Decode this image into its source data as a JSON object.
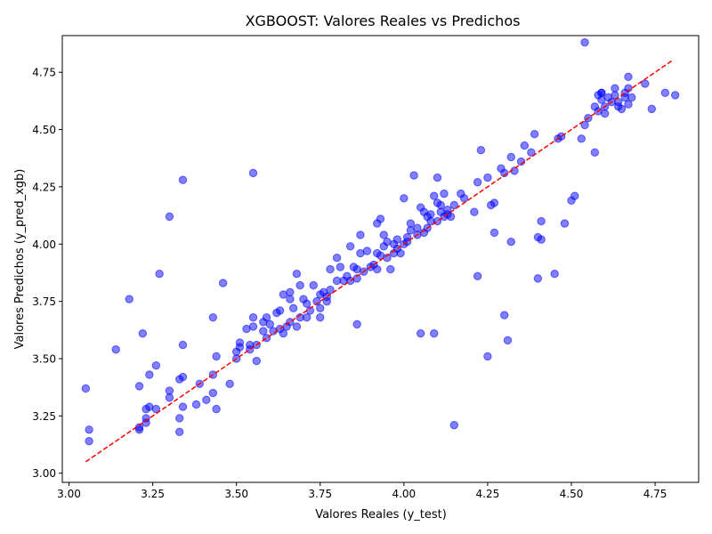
{
  "chart_data": {
    "type": "scatter",
    "title": "XGBOOST: Valores Reales vs Predichos",
    "xlabel": "Valores Reales (y_test)",
    "ylabel": "Valores Predichos (y_pred_xgb)",
    "xlim": [
      2.98,
      4.88
    ],
    "ylim": [
      2.96,
      4.91
    ],
    "xticks": [
      "3.00",
      "3.25",
      "3.50",
      "3.75",
      "4.00",
      "4.25",
      "4.50",
      "4.75"
    ],
    "yticks": [
      "3.00",
      "3.25",
      "3.50",
      "3.75",
      "4.00",
      "4.25",
      "4.50",
      "4.75"
    ],
    "xtick_values": [
      3.0,
      3.25,
      3.5,
      3.75,
      4.0,
      4.25,
      4.5,
      4.75
    ],
    "ytick_values": [
      3.0,
      3.25,
      3.5,
      3.75,
      4.0,
      4.25,
      4.5,
      4.75
    ],
    "grid": false,
    "marker_color": "#0000ff",
    "reference_line": {
      "color": "#ff0000",
      "style": "dashed",
      "x": [
        3.05,
        4.8
      ],
      "y": [
        3.05,
        4.8
      ]
    },
    "points": [
      [
        3.05,
        3.37
      ],
      [
        3.06,
        3.19
      ],
      [
        3.06,
        3.14
      ],
      [
        3.14,
        3.54
      ],
      [
        3.18,
        3.76
      ],
      [
        3.21,
        3.38
      ],
      [
        3.21,
        3.2
      ],
      [
        3.21,
        3.19
      ],
      [
        3.22,
        3.61
      ],
      [
        3.23,
        3.24
      ],
      [
        3.23,
        3.22
      ],
      [
        3.23,
        3.28
      ],
      [
        3.24,
        3.29
      ],
      [
        3.24,
        3.43
      ],
      [
        3.26,
        3.47
      ],
      [
        3.26,
        3.28
      ],
      [
        3.27,
        3.87
      ],
      [
        3.3,
        4.12
      ],
      [
        3.3,
        3.36
      ],
      [
        3.3,
        3.33
      ],
      [
        3.33,
        3.41
      ],
      [
        3.33,
        3.24
      ],
      [
        3.33,
        3.18
      ],
      [
        3.34,
        4.28
      ],
      [
        3.34,
        3.56
      ],
      [
        3.34,
        3.42
      ],
      [
        3.34,
        3.29
      ],
      [
        3.38,
        3.3
      ],
      [
        3.39,
        3.39
      ],
      [
        3.41,
        3.32
      ],
      [
        3.43,
        3.68
      ],
      [
        3.43,
        3.35
      ],
      [
        3.43,
        3.43
      ],
      [
        3.44,
        3.51
      ],
      [
        3.44,
        3.28
      ],
      [
        3.46,
        3.83
      ],
      [
        3.48,
        3.39
      ],
      [
        3.5,
        3.5
      ],
      [
        3.5,
        3.53
      ],
      [
        3.51,
        3.55
      ],
      [
        3.51,
        3.57
      ],
      [
        3.53,
        3.63
      ],
      [
        3.54,
        3.54
      ],
      [
        3.54,
        3.56
      ],
      [
        3.55,
        3.64
      ],
      [
        3.55,
        3.68
      ],
      [
        3.55,
        4.31
      ],
      [
        3.56,
        3.56
      ],
      [
        3.56,
        3.49
      ],
      [
        3.58,
        3.66
      ],
      [
        3.58,
        3.62
      ],
      [
        3.59,
        3.68
      ],
      [
        3.59,
        3.59
      ],
      [
        3.6,
        3.65
      ],
      [
        3.61,
        3.62
      ],
      [
        3.62,
        3.7
      ],
      [
        3.63,
        3.71
      ],
      [
        3.63,
        3.63
      ],
      [
        3.64,
        3.61
      ],
      [
        3.64,
        3.78
      ],
      [
        3.65,
        3.64
      ],
      [
        3.66,
        3.79
      ],
      [
        3.66,
        3.66
      ],
      [
        3.66,
        3.76
      ],
      [
        3.67,
        3.72
      ],
      [
        3.68,
        3.87
      ],
      [
        3.68,
        3.64
      ],
      [
        3.69,
        3.82
      ],
      [
        3.69,
        3.68
      ],
      [
        3.7,
        3.76
      ],
      [
        3.71,
        3.74
      ],
      [
        3.71,
        3.68
      ],
      [
        3.72,
        3.71
      ],
      [
        3.73,
        3.82
      ],
      [
        3.74,
        3.75
      ],
      [
        3.75,
        3.78
      ],
      [
        3.75,
        3.68
      ],
      [
        3.75,
        3.72
      ],
      [
        3.76,
        3.79
      ],
      [
        3.77,
        3.77
      ],
      [
        3.77,
        3.75
      ],
      [
        3.78,
        3.8
      ],
      [
        3.78,
        3.89
      ],
      [
        3.8,
        3.94
      ],
      [
        3.8,
        3.84
      ],
      [
        3.81,
        3.9
      ],
      [
        3.82,
        3.84
      ],
      [
        3.83,
        3.86
      ],
      [
        3.84,
        3.84
      ],
      [
        3.84,
        3.99
      ],
      [
        3.85,
        3.9
      ],
      [
        3.86,
        3.85
      ],
      [
        3.86,
        3.89
      ],
      [
        3.86,
        3.65
      ],
      [
        3.87,
        4.04
      ],
      [
        3.87,
        3.96
      ],
      [
        3.88,
        3.88
      ],
      [
        3.89,
        3.97
      ],
      [
        3.9,
        3.9
      ],
      [
        3.91,
        3.91
      ],
      [
        3.92,
        3.89
      ],
      [
        3.92,
        3.96
      ],
      [
        3.92,
        4.09
      ],
      [
        3.93,
        3.95
      ],
      [
        3.93,
        4.11
      ],
      [
        3.94,
        3.99
      ],
      [
        3.94,
        4.04
      ],
      [
        3.95,
        3.94
      ],
      [
        3.95,
        4.01
      ],
      [
        3.96,
        3.89
      ],
      [
        3.97,
        4.0
      ],
      [
        3.97,
        3.96
      ],
      [
        3.98,
        4.02
      ],
      [
        3.98,
        3.98
      ],
      [
        3.99,
        3.96
      ],
      [
        4.0,
        4.0
      ],
      [
        4.0,
        4.2
      ],
      [
        4.01,
        4.03
      ],
      [
        4.01,
        4.01
      ],
      [
        4.02,
        4.06
      ],
      [
        4.02,
        4.09
      ],
      [
        4.03,
        4.3
      ],
      [
        4.04,
        4.04
      ],
      [
        4.04,
        4.07
      ],
      [
        4.05,
        4.16
      ],
      [
        4.05,
        3.61
      ],
      [
        4.06,
        4.05
      ],
      [
        4.06,
        4.14
      ],
      [
        4.07,
        4.07
      ],
      [
        4.07,
        4.12
      ],
      [
        4.08,
        4.1
      ],
      [
        4.08,
        4.13
      ],
      [
        4.09,
        4.21
      ],
      [
        4.09,
        3.61
      ],
      [
        4.1,
        4.18
      ],
      [
        4.1,
        4.29
      ],
      [
        4.1,
        4.1
      ],
      [
        4.11,
        4.14
      ],
      [
        4.11,
        4.17
      ],
      [
        4.12,
        4.22
      ],
      [
        4.12,
        4.12
      ],
      [
        4.13,
        4.13
      ],
      [
        4.13,
        4.15
      ],
      [
        4.14,
        4.12
      ],
      [
        4.15,
        4.17
      ],
      [
        4.15,
        3.21
      ],
      [
        4.17,
        4.22
      ],
      [
        4.18,
        4.2
      ],
      [
        4.21,
        4.14
      ],
      [
        4.22,
        4.27
      ],
      [
        4.22,
        3.86
      ],
      [
        4.23,
        4.41
      ],
      [
        4.25,
        4.29
      ],
      [
        4.25,
        3.51
      ],
      [
        4.26,
        4.17
      ],
      [
        4.27,
        4.05
      ],
      [
        4.27,
        4.18
      ],
      [
        4.29,
        4.33
      ],
      [
        4.3,
        4.31
      ],
      [
        4.3,
        3.69
      ],
      [
        4.31,
        3.58
      ],
      [
        4.32,
        4.01
      ],
      [
        4.32,
        4.38
      ],
      [
        4.33,
        4.32
      ],
      [
        4.35,
        4.36
      ],
      [
        4.36,
        4.43
      ],
      [
        4.38,
        4.4
      ],
      [
        4.39,
        4.48
      ],
      [
        4.4,
        3.85
      ],
      [
        4.4,
        4.03
      ],
      [
        4.41,
        4.02
      ],
      [
        4.41,
        4.1
      ],
      [
        4.45,
        3.87
      ],
      [
        4.46,
        4.46
      ],
      [
        4.47,
        4.47
      ],
      [
        4.48,
        4.09
      ],
      [
        4.5,
        4.19
      ],
      [
        4.51,
        4.21
      ],
      [
        4.53,
        4.46
      ],
      [
        4.54,
        4.52
      ],
      [
        4.54,
        4.88
      ],
      [
        4.55,
        4.55
      ],
      [
        4.57,
        4.6
      ],
      [
        4.57,
        4.4
      ],
      [
        4.58,
        4.58
      ],
      [
        4.58,
        4.65
      ],
      [
        4.59,
        4.66
      ],
      [
        4.59,
        4.63
      ],
      [
        4.59,
        4.66
      ],
      [
        4.6,
        4.6
      ],
      [
        4.6,
        4.57
      ],
      [
        4.61,
        4.64
      ],
      [
        4.62,
        4.62
      ],
      [
        4.63,
        4.65
      ],
      [
        4.63,
        4.68
      ],
      [
        4.64,
        4.6
      ],
      [
        4.64,
        4.62
      ],
      [
        4.65,
        4.59
      ],
      [
        4.66,
        4.64
      ],
      [
        4.66,
        4.66
      ],
      [
        4.67,
        4.61
      ],
      [
        4.67,
        4.73
      ],
      [
        4.67,
        4.68
      ],
      [
        4.68,
        4.64
      ],
      [
        4.72,
        4.7
      ],
      [
        4.74,
        4.59
      ],
      [
        4.78,
        4.66
      ],
      [
        4.81,
        4.65
      ]
    ]
  }
}
